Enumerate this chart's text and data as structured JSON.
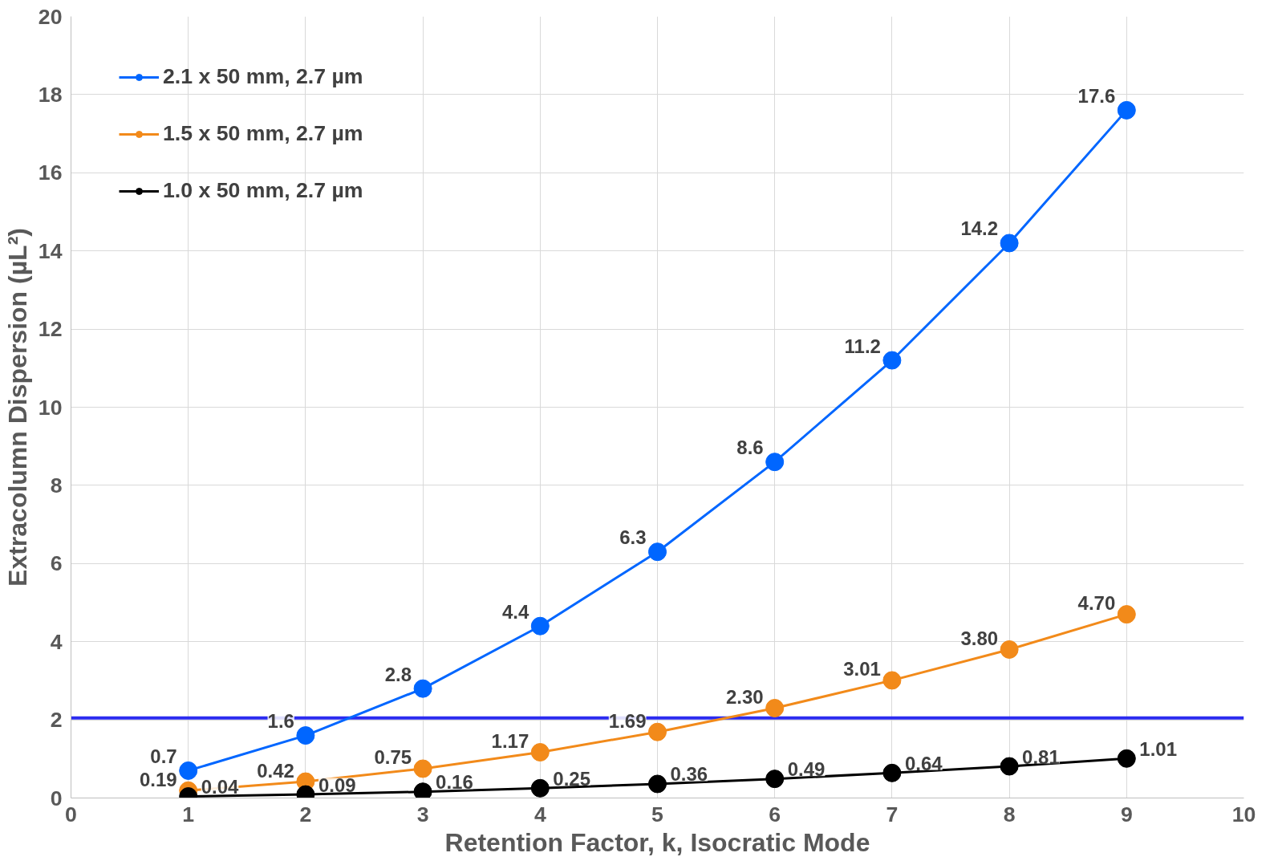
{
  "chart_data": {
    "type": "line",
    "xlabel": "Retention Factor, k, Isocratic Mode",
    "ylabel": "Extracolumn Dispersion (µL²)",
    "x": [
      1,
      2,
      3,
      4,
      5,
      6,
      7,
      8,
      9
    ],
    "series": [
      {
        "name": "2.1 x 50 mm, 2.7 µm",
        "color": "#0066ff",
        "values": [
          0.7,
          1.6,
          2.8,
          4.4,
          6.3,
          8.6,
          11.2,
          14.2,
          17.6
        ],
        "value_labels": [
          "0.7",
          "1.6",
          "2.8",
          "4.4",
          "6.3",
          "8.6",
          "11.2",
          "14.2",
          "17.6"
        ]
      },
      {
        "name": "1.5 x 50 mm, 2.7 µm",
        "color": "#f28a1a",
        "values": [
          0.19,
          0.42,
          0.75,
          1.17,
          1.69,
          2.3,
          3.01,
          3.8,
          4.7
        ],
        "value_labels": [
          "0.19",
          "0.42",
          "0.75",
          "1.17",
          "1.69",
          "2.30",
          "3.01",
          "3.80",
          "4.70"
        ]
      },
      {
        "name": "1.0 x 50 mm, 2.7 µm",
        "color": "#000000",
        "values": [
          0.04,
          0.09,
          0.16,
          0.25,
          0.36,
          0.49,
          0.64,
          0.81,
          1.01
        ],
        "value_labels": [
          "0.04",
          "0.09",
          "0.16",
          "0.25",
          "0.36",
          "0.49",
          "0.64",
          "0.81",
          "1.01"
        ]
      }
    ],
    "xlim": [
      0,
      10
    ],
    "xticks": [
      0,
      1,
      2,
      3,
      4,
      5,
      6,
      7,
      8,
      9,
      10
    ],
    "ylim": [
      0,
      20
    ],
    "yticks": [
      0,
      2,
      4,
      6,
      8,
      10,
      12,
      14,
      16,
      18,
      20
    ],
    "ref_lines": [
      {
        "axis": "y",
        "value": 2.05,
        "label": null,
        "color": "#2b2bf0"
      }
    ],
    "grid": true,
    "legend": "top left",
    "marker": "circle",
    "line_style": "solid"
  }
}
